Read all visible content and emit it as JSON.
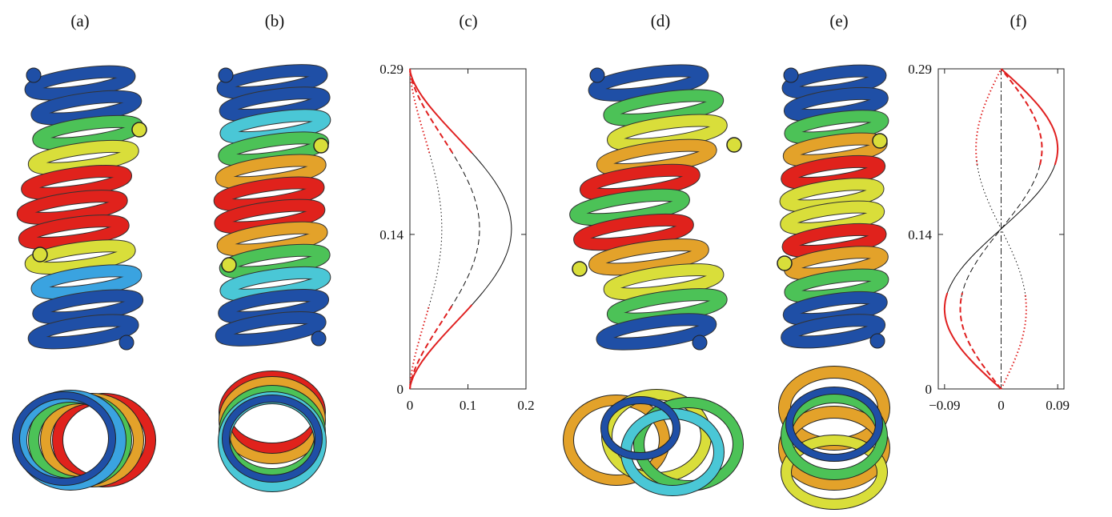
{
  "panels": [
    {
      "label": "(a)"
    },
    {
      "label": "(b)"
    },
    {
      "label": "(c)"
    },
    {
      "label": "(d)"
    },
    {
      "label": "(e)"
    },
    {
      "label": "(f)"
    }
  ],
  "colors": {
    "deep_blue": "#1f4fa6",
    "light_blue": "#3aa3e0",
    "cyan": "#4ac7d6",
    "green": "#4cc257",
    "yellow": "#d9de3a",
    "orange": "#e3a22a",
    "red": "#e0221c",
    "curve_red": "#e02020",
    "curve_black": "#111111"
  },
  "chart_data": [
    {
      "panel": "(c)",
      "type": "line",
      "xlabel": "",
      "ylabel": "",
      "xlim": [
        0,
        0.2
      ],
      "ylim": [
        0,
        0.29
      ],
      "xticks": [
        "0",
        "0.1",
        "0.2"
      ],
      "yticks": [
        "0",
        "0.14",
        "0.29"
      ],
      "series": [
        {
          "style": "solid",
          "peak": 0.175
        },
        {
          "style": "dashed",
          "peak": 0.12
        },
        {
          "style": "dotted",
          "peak": 0.055
        }
      ]
    },
    {
      "panel": "(f)",
      "type": "line",
      "xlabel": "",
      "ylabel": "",
      "xlim": [
        -0.1,
        0.1
      ],
      "ylim": [
        0,
        0.29
      ],
      "xticks": [
        "−0.09",
        "0",
        "0.09"
      ],
      "yticks": [
        "0",
        "0.14",
        "0.29"
      ],
      "series": [
        {
          "style": "solid",
          "amplitude": 0.09
        },
        {
          "style": "dashed",
          "amplitude": 0.065
        },
        {
          "style": "dotted",
          "amplitude": 0.04
        }
      ]
    }
  ]
}
